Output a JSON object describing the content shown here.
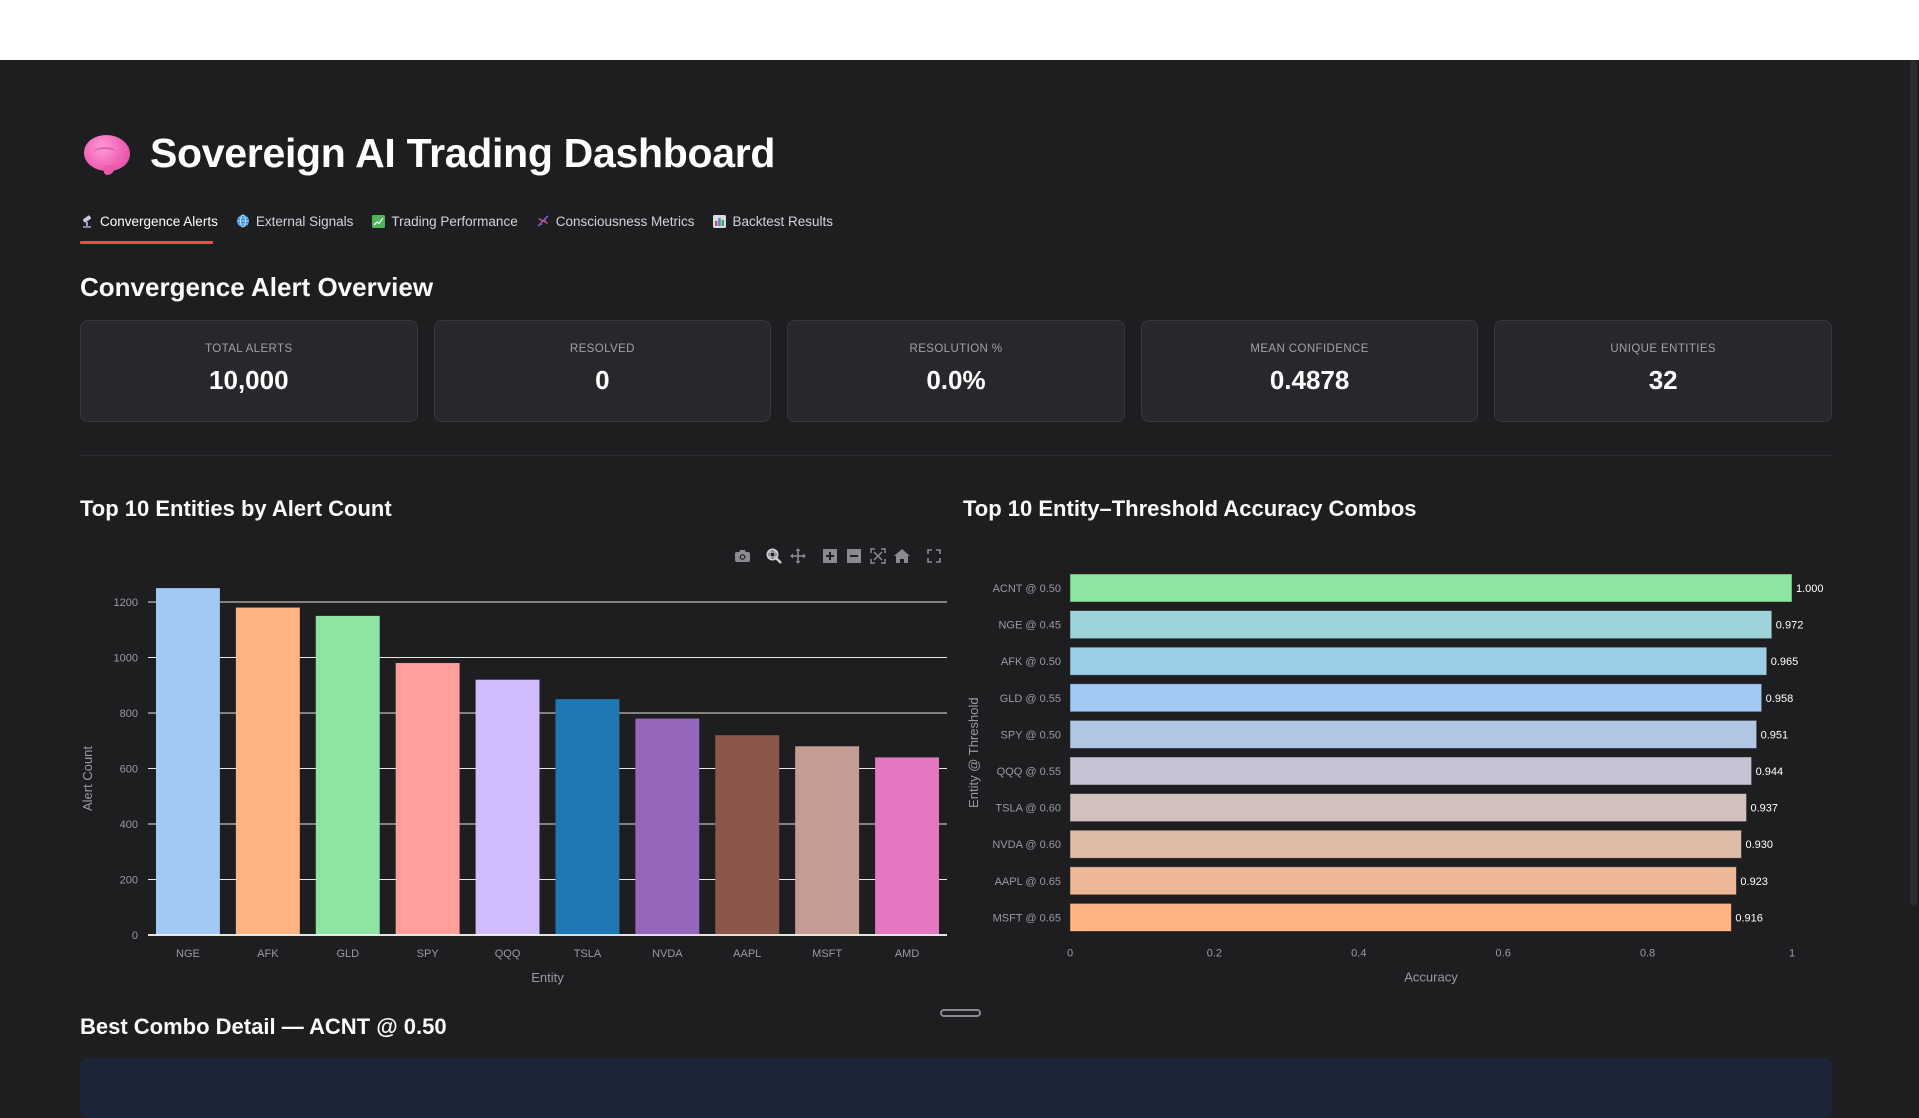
{
  "app": {
    "title": "Sovereign AI Trading Dashboard",
    "title_icon": "brain-icon"
  },
  "tabs": [
    {
      "label": "Convergence Alerts",
      "icon": "telescope-icon",
      "active": true
    },
    {
      "label": "External Signals",
      "icon": "globe-icon",
      "active": false
    },
    {
      "label": "Trading Performance",
      "icon": "chart-increasing-icon",
      "active": false
    },
    {
      "label": "Consciousness Metrics",
      "icon": "dna-icon",
      "active": false
    },
    {
      "label": "Backtest Results",
      "icon": "bar-chart-icon",
      "active": false
    }
  ],
  "overview": {
    "title": "Convergence Alert Overview",
    "metrics": [
      {
        "label": "TOTAL ALERTS",
        "value": "10,000"
      },
      {
        "label": "RESOLVED",
        "value": "0"
      },
      {
        "label": "RESOLUTION %",
        "value": "0.0%"
      },
      {
        "label": "MEAN CONFIDENCE",
        "value": "0.4878"
      },
      {
        "label": "UNIQUE ENTITIES",
        "value": "32"
      }
    ]
  },
  "charts_section": {
    "left_title": "Top 10 Entities by Alert Count",
    "right_title": "Top 10 Entity–Threshold Accuracy Combos",
    "toolbar": [
      "camera-icon",
      "zoom-icon",
      "pan-icon",
      "zoom-in-icon",
      "zoom-out-icon",
      "autoscale-icon",
      "home-icon",
      "fullscreen-icon"
    ]
  },
  "chart_data": [
    {
      "type": "bar",
      "title": "Top 10 Entities by Alert Count",
      "xlabel": "Entity",
      "ylabel": "Alert Count",
      "categories": [
        "NGE",
        "AFK",
        "GLD",
        "SPY",
        "QQQ",
        "TSLA",
        "NVDA",
        "AAPL",
        "MSFT",
        "AMD"
      ],
      "values": [
        1250,
        1180,
        1150,
        980,
        920,
        850,
        780,
        720,
        680,
        640
      ],
      "colors": [
        "#a1c9f4",
        "#ffb482",
        "#8de5a1",
        "#ff9f9b",
        "#d0bbff",
        "#1f77b4",
        "#9467bd",
        "#8c564b",
        "#c49c94",
        "#e377c2"
      ],
      "yticks": [
        0,
        200,
        400,
        600,
        800,
        1000,
        1200
      ],
      "ylim": [
        0,
        1300
      ],
      "grid": true
    },
    {
      "type": "bar",
      "orientation": "horizontal",
      "title": "Top 10 Entity–Threshold Accuracy Combos",
      "xlabel": "Accuracy",
      "ylabel": "Entity @ Threshold",
      "categories": [
        "ACNT @ 0.50",
        "NGE @ 0.45",
        "AFK @ 0.50",
        "GLD @ 0.55",
        "SPY @ 0.50",
        "QQQ @ 0.55",
        "TSLA @ 0.60",
        "NVDA @ 0.60",
        "AAPL @ 0.65",
        "MSFT @ 0.65"
      ],
      "values": [
        1.0,
        0.972,
        0.965,
        0.958,
        0.951,
        0.944,
        0.937,
        0.93,
        0.923,
        0.916
      ],
      "labels": [
        "1.000",
        "0.972",
        "0.965",
        "0.958",
        "0.951",
        "0.944",
        "0.937",
        "0.930",
        "0.923",
        "0.916"
      ],
      "colors": [
        "#8de5a1",
        "#9dd3d9",
        "#9ccde6",
        "#a1c9f4",
        "#b1c6e3",
        "#c3c3d3",
        "#d2c0bc",
        "#dfbca7",
        "#ecb895",
        "#ffb482"
      ],
      "xticks": [
        "0",
        "0.2",
        "0.4",
        "0.6",
        "0.8",
        "1"
      ],
      "xlim": [
        0,
        1
      ],
      "grid": false
    }
  ],
  "best_combo": {
    "title": "Best Combo Detail — ACNT @ 0.50"
  }
}
